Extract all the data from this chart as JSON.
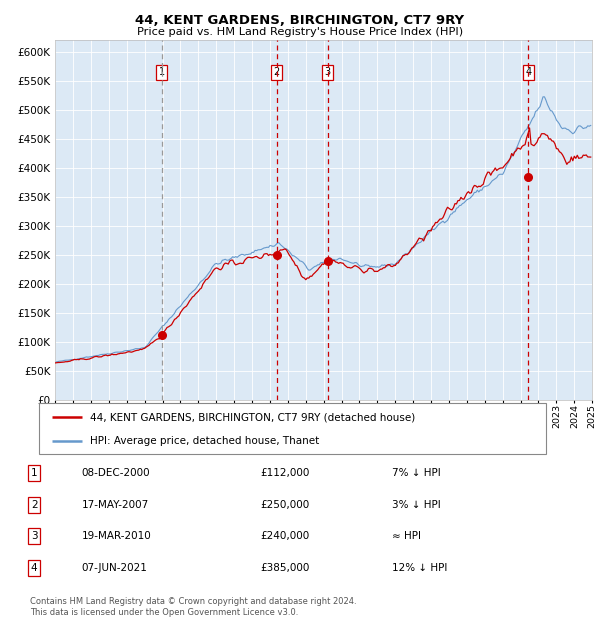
{
  "title": "44, KENT GARDENS, BIRCHINGTON, CT7 9RY",
  "subtitle": "Price paid vs. HM Land Registry's House Price Index (HPI)",
  "plot_bg_color": "#dce9f5",
  "red_line_color": "#cc0000",
  "blue_line_color": "#6699cc",
  "marker_color": "#cc0000",
  "ylim": [
    0,
    620000
  ],
  "yticks": [
    0,
    50000,
    100000,
    150000,
    200000,
    250000,
    300000,
    350000,
    400000,
    450000,
    500000,
    550000,
    600000
  ],
  "sales": [
    {
      "label": "1",
      "date": "08-DEC-2000",
      "price": 112000,
      "x_year": 2000.94
    },
    {
      "label": "2",
      "date": "17-MAY-2007",
      "price": 250000,
      "x_year": 2007.38
    },
    {
      "label": "3",
      "date": "19-MAR-2010",
      "price": 240000,
      "x_year": 2010.22
    },
    {
      "label": "4",
      "date": "07-JUN-2021",
      "price": 385000,
      "x_year": 2021.44
    }
  ],
  "legend_entries": [
    {
      "label": "44, KENT GARDENS, BIRCHINGTON, CT7 9RY (detached house)",
      "color": "#cc0000"
    },
    {
      "label": "HPI: Average price, detached house, Thanet",
      "color": "#6699cc"
    }
  ],
  "table_rows": [
    {
      "num": "1",
      "date": "08-DEC-2000",
      "price": "£112,000",
      "note": "7% ↓ HPI"
    },
    {
      "num": "2",
      "date": "17-MAY-2007",
      "price": "£250,000",
      "note": "3% ↓ HPI"
    },
    {
      "num": "3",
      "date": "19-MAR-2010",
      "price": "£240,000",
      "note": "≈ HPI"
    },
    {
      "num": "4",
      "date": "07-JUN-2021",
      "price": "£385,000",
      "note": "12% ↓ HPI"
    }
  ],
  "footer": "Contains HM Land Registry data © Crown copyright and database right 2024.\nThis data is licensed under the Open Government Licence v3.0.",
  "xmin": 1995,
  "xmax": 2025
}
